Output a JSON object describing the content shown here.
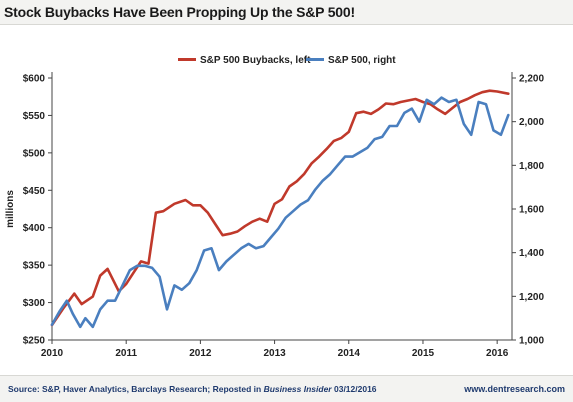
{
  "page": {
    "title": "Stock Buybacks Have Been Propping Up the S&P 500!",
    "source_prefix": "Source: S&P, Haver Analytics, Barclays Research; Reposted in ",
    "source_italic": "Business Insider",
    "source_suffix": " 03/12/2016",
    "website": "www.dentresearch.com"
  },
  "chart_data": {
    "type": "line",
    "title": "Stock Buybacks Have Been Propping Up the S&P 500!",
    "ylabel": "millions",
    "x_ticks": [
      2010,
      2011,
      2012,
      2013,
      2014,
      2015,
      2016
    ],
    "xlim": [
      2010,
      2016.2
    ],
    "y_left": {
      "lim": [
        250,
        600
      ],
      "ticks": [
        "$250",
        "$300",
        "$350",
        "$400",
        "$450",
        "$500",
        "$550",
        "$600"
      ],
      "tick_values": [
        250,
        300,
        350,
        400,
        450,
        500,
        550,
        600
      ]
    },
    "y_right": {
      "lim": [
        1000,
        2200
      ],
      "ticks": [
        "1,000",
        "1,200",
        "1,400",
        "1,600",
        "1,800",
        "2,000",
        "2,200"
      ],
      "tick_values": [
        1000,
        1200,
        1400,
        1600,
        1800,
        2000,
        2200
      ]
    },
    "grid": false,
    "legend_position": "top",
    "series": [
      {
        "name": "S&P 500 Buybacks, left",
        "axis": "left",
        "color": "#c0392b",
        "x": [
          2010.0,
          2010.15,
          2010.3,
          2010.4,
          2010.55,
          2010.65,
          2010.75,
          2010.9,
          2011.0,
          2011.1,
          2011.2,
          2011.3,
          2011.4,
          2011.5,
          2011.65,
          2011.8,
          2011.9,
          2012.0,
          2012.1,
          2012.2,
          2012.3,
          2012.4,
          2012.5,
          2012.6,
          2012.7,
          2012.8,
          2012.9,
          2013.0,
          2013.1,
          2013.2,
          2013.3,
          2013.4,
          2013.5,
          2013.6,
          2013.7,
          2013.8,
          2013.9,
          2014.0,
          2014.1,
          2014.2,
          2014.3,
          2014.4,
          2014.5,
          2014.6,
          2014.7,
          2014.8,
          2014.9,
          2015.0,
          2015.1,
          2015.2,
          2015.3,
          2015.4,
          2015.5,
          2015.6,
          2015.7,
          2015.8,
          2015.9,
          2016.0,
          2016.15
        ],
        "values": [
          270,
          292,
          312,
          298,
          308,
          336,
          345,
          315,
          325,
          340,
          355,
          352,
          420,
          422,
          432,
          437,
          430,
          430,
          420,
          405,
          390,
          392,
          395,
          402,
          408,
          412,
          408,
          432,
          438,
          455,
          462,
          472,
          486,
          495,
          505,
          516,
          520,
          528,
          553,
          555,
          552,
          558,
          566,
          565,
          568,
          570,
          572,
          568,
          565,
          558,
          552,
          560,
          568,
          572,
          577,
          581,
          583,
          582,
          579
        ]
      },
      {
        "name": "S&P 500, right",
        "axis": "right",
        "color": "#4a7fbf",
        "x": [
          2010.0,
          2010.1,
          2010.2,
          2010.28,
          2010.38,
          2010.45,
          2010.55,
          2010.65,
          2010.75,
          2010.85,
          2010.95,
          2011.05,
          2011.15,
          2011.25,
          2011.35,
          2011.45,
          2011.55,
          2011.65,
          2011.75,
          2011.85,
          2011.95,
          2012.05,
          2012.15,
          2012.25,
          2012.35,
          2012.45,
          2012.55,
          2012.65,
          2012.75,
          2012.85,
          2012.95,
          2013.05,
          2013.15,
          2013.25,
          2013.35,
          2013.45,
          2013.55,
          2013.65,
          2013.75,
          2013.85,
          2013.95,
          2014.05,
          2014.15,
          2014.25,
          2014.35,
          2014.45,
          2014.55,
          2014.65,
          2014.75,
          2014.85,
          2014.95,
          2015.05,
          2015.15,
          2015.25,
          2015.35,
          2015.45,
          2015.55,
          2015.65,
          2015.75,
          2015.85,
          2015.95,
          2016.05,
          2016.15
        ],
        "values": [
          1070,
          1130,
          1180,
          1120,
          1060,
          1100,
          1060,
          1140,
          1180,
          1180,
          1250,
          1320,
          1340,
          1340,
          1330,
          1290,
          1140,
          1250,
          1230,
          1260,
          1320,
          1410,
          1420,
          1320,
          1360,
          1390,
          1420,
          1440,
          1420,
          1430,
          1470,
          1510,
          1560,
          1590,
          1620,
          1640,
          1690,
          1730,
          1760,
          1800,
          1840,
          1840,
          1860,
          1880,
          1920,
          1930,
          1980,
          1980,
          2040,
          2060,
          2000,
          2100,
          2080,
          2110,
          2090,
          2100,
          1990,
          1940,
          2090,
          2080,
          1960,
          1940,
          2030
        ]
      }
    ]
  }
}
